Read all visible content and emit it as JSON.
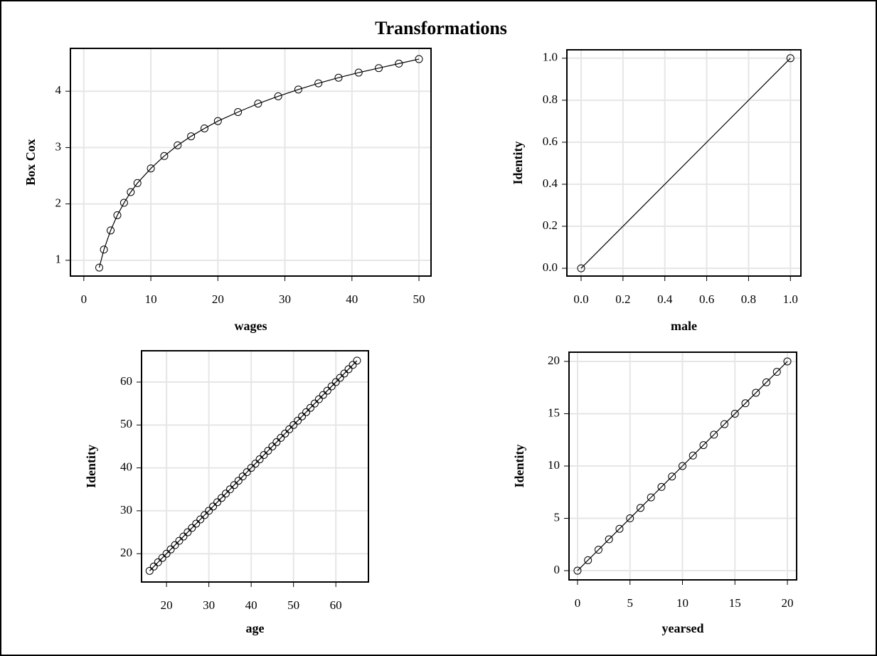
{
  "title": "Transformations",
  "chart_data": [
    {
      "type": "line",
      "xlabel": "wages",
      "ylabel": "Box Cox",
      "x": [
        2.3,
        3,
        4,
        5,
        6,
        7,
        8,
        10,
        12,
        14,
        16,
        18,
        20,
        23,
        26,
        29,
        32,
        35,
        38,
        41,
        44,
        47,
        50
      ],
      "values": [
        0.87,
        1.19,
        1.53,
        1.8,
        2.02,
        2.21,
        2.37,
        2.63,
        2.85,
        3.04,
        3.2,
        3.34,
        3.47,
        3.63,
        3.78,
        3.91,
        4.03,
        4.14,
        4.24,
        4.33,
        4.41,
        4.49,
        4.57
      ],
      "xlim": [
        -2.0,
        51.8
      ],
      "ylim": [
        0.72,
        4.76
      ],
      "xticks": [
        0,
        10,
        20,
        30,
        40,
        50
      ],
      "yticks": [
        1,
        2,
        3,
        4
      ],
      "grid": true,
      "color": "#000000"
    },
    {
      "type": "line",
      "xlabel": "male",
      "ylabel": "Identity",
      "x": [
        0,
        1
      ],
      "values": [
        0,
        1
      ],
      "xlim": [
        -0.068,
        1.05
      ],
      "ylim": [
        -0.037,
        1.04
      ],
      "xticks": [
        {
          "value": 0,
          "label": "0.0"
        },
        0.2,
        0.4,
        0.6,
        0.8,
        {
          "value": 1,
          "label": "1.0"
        }
      ],
      "yticks": [
        {
          "value": 0,
          "label": "0.0"
        },
        0.2,
        0.4,
        0.6,
        0.8,
        {
          "value": 1,
          "label": "1.0"
        }
      ],
      "grid": true,
      "color": "#000000"
    },
    {
      "type": "line",
      "xlabel": "age",
      "ylabel": "Identity",
      "x": [
        16,
        17,
        18,
        19,
        20,
        21,
        22,
        23,
        24,
        25,
        26,
        27,
        28,
        29,
        30,
        31,
        32,
        33,
        34,
        35,
        36,
        37,
        38,
        39,
        40,
        41,
        42,
        43,
        44,
        45,
        46,
        47,
        48,
        49,
        50,
        51,
        52,
        53,
        54,
        55,
        56,
        57,
        58,
        59,
        60,
        61,
        62,
        63,
        64,
        65
      ],
      "values": [
        16,
        17,
        18,
        19,
        20,
        21,
        22,
        23,
        24,
        25,
        26,
        27,
        28,
        29,
        30,
        31,
        32,
        33,
        34,
        35,
        36,
        37,
        38,
        39,
        40,
        41,
        42,
        43,
        44,
        45,
        46,
        47,
        48,
        49,
        50,
        51,
        52,
        53,
        54,
        55,
        56,
        57,
        58,
        59,
        60,
        61,
        62,
        63,
        64,
        65
      ],
      "xlim": [
        14.1,
        67.7
      ],
      "ylim": [
        13.4,
        67.3
      ],
      "xticks": [
        20,
        30,
        40,
        50,
        60
      ],
      "yticks": [
        20,
        30,
        40,
        50,
        60
      ],
      "grid": true,
      "color": "#000000"
    },
    {
      "type": "line",
      "xlabel": "yearsed",
      "ylabel": "Identity",
      "x": [
        0,
        1,
        2,
        3,
        4,
        5,
        6,
        7,
        8,
        9,
        10,
        11,
        12,
        13,
        14,
        15,
        16,
        17,
        18,
        19,
        20
      ],
      "values": [
        0,
        1,
        2,
        3,
        4,
        5,
        6,
        7,
        8,
        9,
        10,
        11,
        12,
        13,
        14,
        15,
        16,
        17,
        18,
        19,
        20
      ],
      "xlim": [
        -0.81,
        20.88
      ],
      "ylim": [
        -0.88,
        20.88
      ],
      "xticks": [
        0,
        5,
        10,
        15,
        20
      ],
      "yticks": [
        0,
        5,
        10,
        15,
        20
      ],
      "grid": true,
      "color": "#000000"
    }
  ]
}
